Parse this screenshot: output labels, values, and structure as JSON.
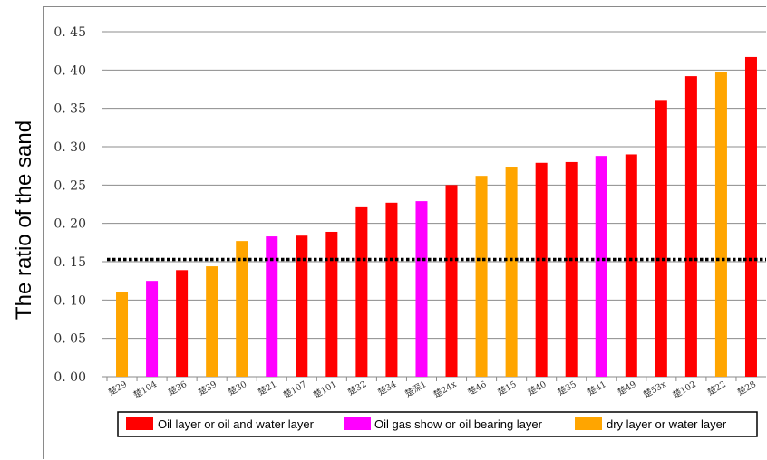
{
  "chart_data": {
    "type": "bar",
    "ylabel": "The ratio of the sand",
    "xlabel": "",
    "title": "",
    "ylim": [
      0,
      0.45
    ],
    "ytick_step": 0.05,
    "ytick_labels": [
      "0. 00",
      "0. 05",
      "0. 10",
      "0. 15",
      "0. 20",
      "0. 25",
      "0. 30",
      "0. 35",
      "0. 40",
      "0. 45"
    ],
    "grid": "horizontal",
    "reference_line": {
      "value": 0.153,
      "style": "dotted",
      "color": "#000000"
    },
    "categories": [
      "楚29",
      "楚104",
      "楚36",
      "楚39",
      "楚30",
      "楚21",
      "楚107",
      "楚101",
      "楚32",
      "楚34",
      "楚深1",
      "楚24x",
      "楚46",
      "楚15",
      "楚40",
      "楚35",
      "楚41",
      "楚49",
      "楚53x",
      "楚102",
      "楚22",
      "楚28"
    ],
    "values": [
      0.111,
      0.125,
      0.139,
      0.144,
      0.177,
      0.183,
      0.184,
      0.189,
      0.221,
      0.227,
      0.229,
      0.25,
      0.262,
      0.274,
      0.279,
      0.28,
      0.288,
      0.29,
      0.361,
      0.392,
      0.397,
      0.417
    ],
    "classes": [
      "dry",
      "show",
      "oil",
      "dry",
      "dry",
      "show",
      "oil",
      "oil",
      "oil",
      "oil",
      "show",
      "oil",
      "dry",
      "dry",
      "oil",
      "oil",
      "show",
      "oil",
      "oil",
      "oil",
      "dry",
      "oil"
    ],
    "series": [
      {
        "key": "oil",
        "name": "Oil layer or oil and water layer",
        "color": "#ff0000"
      },
      {
        "key": "show",
        "name": "Oil gas show or oil bearing layer",
        "color": "#ff00ff"
      },
      {
        "key": "dry",
        "name": "dry layer or water layer",
        "color": "#ffa500"
      }
    ],
    "legend_position": "bottom"
  }
}
